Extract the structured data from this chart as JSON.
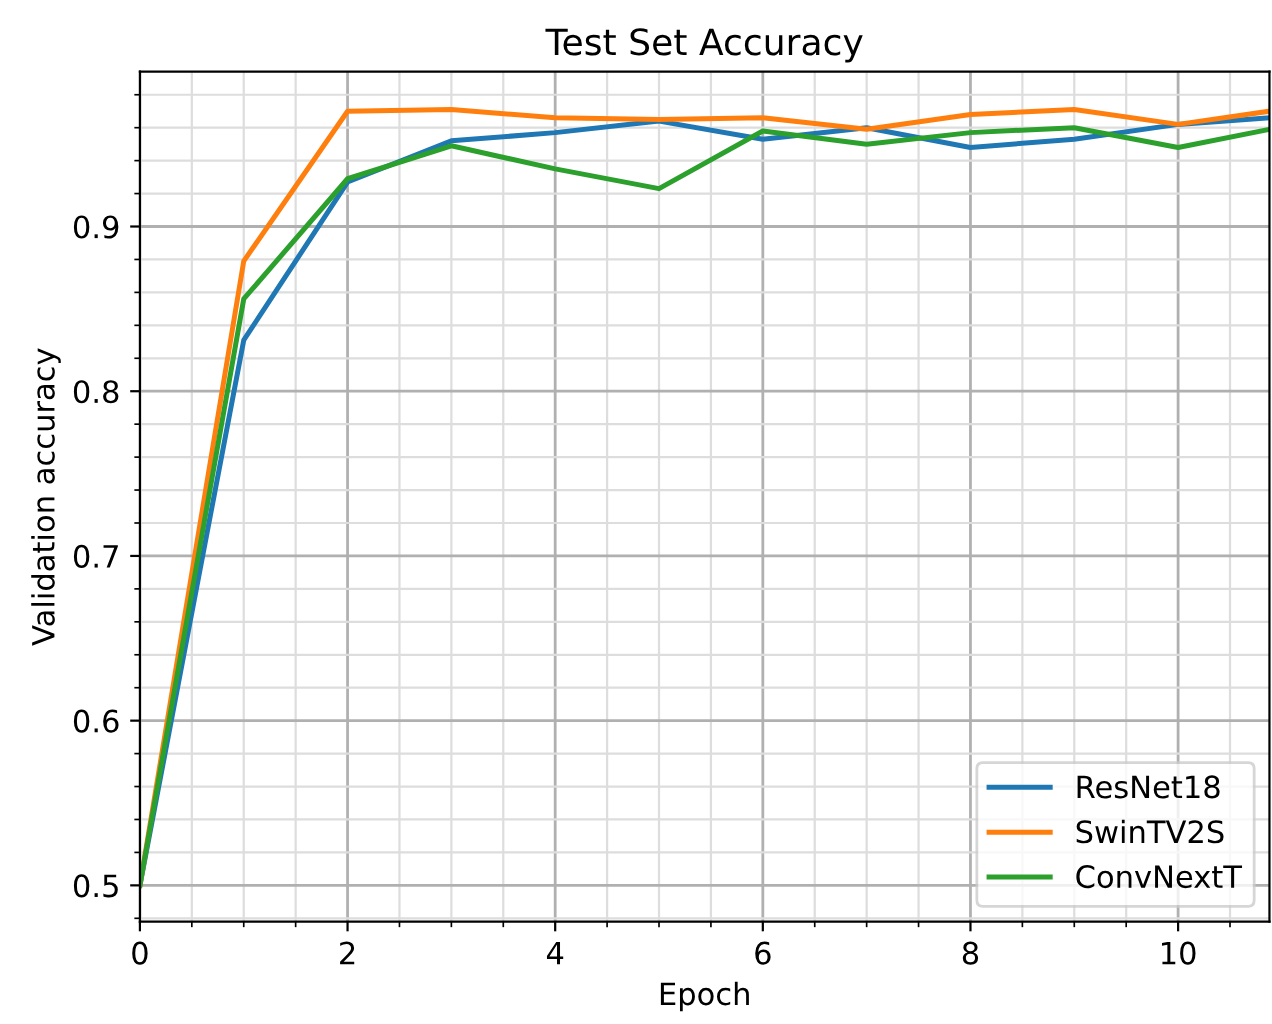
{
  "chart_data": {
    "type": "line",
    "title": "Test Set Accuracy",
    "xlabel": "Epoch",
    "ylabel": "Validation accuracy",
    "x": [
      0,
      1,
      2,
      3,
      4,
      5,
      6,
      7,
      8,
      9,
      10,
      10.88
    ],
    "series": [
      {
        "name": "ResNet18",
        "color": "#1f77b4",
        "values": [
          0.5,
          0.831,
          0.927,
          0.952,
          0.957,
          0.964,
          0.953,
          0.96,
          0.948,
          0.953,
          0.962,
          0.966
        ]
      },
      {
        "name": "SwinTV2S",
        "color": "#ff7f0e",
        "values": [
          0.5,
          0.879,
          0.97,
          0.971,
          0.966,
          0.965,
          0.966,
          0.959,
          0.968,
          0.971,
          0.962,
          0.97
        ]
      },
      {
        "name": "ConvNextT",
        "color": "#2ca02c",
        "values": [
          0.5,
          0.856,
          0.929,
          0.949,
          0.935,
          0.923,
          0.958,
          0.95,
          0.957,
          0.96,
          0.948,
          0.959
        ]
      }
    ],
    "xlim": [
      0,
      10.88
    ],
    "ylim": [
      0.478,
      0.994
    ],
    "xticks": [
      0,
      {
        "value": 0.5,
        "label": null
      },
      {
        "value": 1,
        "label": null
      },
      {
        "value": 1.5,
        "label": null
      },
      2,
      {
        "value": 2.5,
        "label": null
      },
      {
        "value": 3,
        "label": null
      },
      {
        "value": 3.5,
        "label": null
      },
      4,
      {
        "value": 4.5,
        "label": null
      },
      {
        "value": 5,
        "label": null
      },
      {
        "value": 5.5,
        "label": null
      },
      6,
      {
        "value": 6.5,
        "label": null
      },
      {
        "value": 7,
        "label": null
      },
      {
        "value": 7.5,
        "label": null
      },
      8,
      {
        "value": 8.5,
        "label": null
      },
      {
        "value": 9,
        "label": null
      },
      {
        "value": 9.5,
        "label": null
      },
      10,
      {
        "value": 10.5,
        "label": null
      }
    ],
    "yticks": [
      {
        "value": 0.48,
        "label": null
      },
      0.5,
      {
        "value": 0.52,
        "label": null
      },
      {
        "value": 0.54,
        "label": null
      },
      {
        "value": 0.56,
        "label": null
      },
      {
        "value": 0.58,
        "label": null
      },
      0.6,
      {
        "value": 0.62,
        "label": null
      },
      {
        "value": 0.64,
        "label": null
      },
      {
        "value": 0.66,
        "label": null
      },
      {
        "value": 0.68,
        "label": null
      },
      0.7,
      {
        "value": 0.72,
        "label": null
      },
      {
        "value": 0.74,
        "label": null
      },
      {
        "value": 0.76,
        "label": null
      },
      {
        "value": 0.78,
        "label": null
      },
      0.8,
      {
        "value": 0.82,
        "label": null
      },
      {
        "value": 0.84,
        "label": null
      },
      {
        "value": 0.86,
        "label": null
      },
      {
        "value": 0.88,
        "label": null
      },
      0.9,
      {
        "value": 0.92,
        "label": null
      },
      {
        "value": 0.94,
        "label": null
      },
      {
        "value": 0.96,
        "label": null
      },
      {
        "value": 0.98,
        "label": null
      }
    ],
    "grid": true,
    "legend": "bottom right",
    "marker": "none",
    "line_style": "solid"
  }
}
